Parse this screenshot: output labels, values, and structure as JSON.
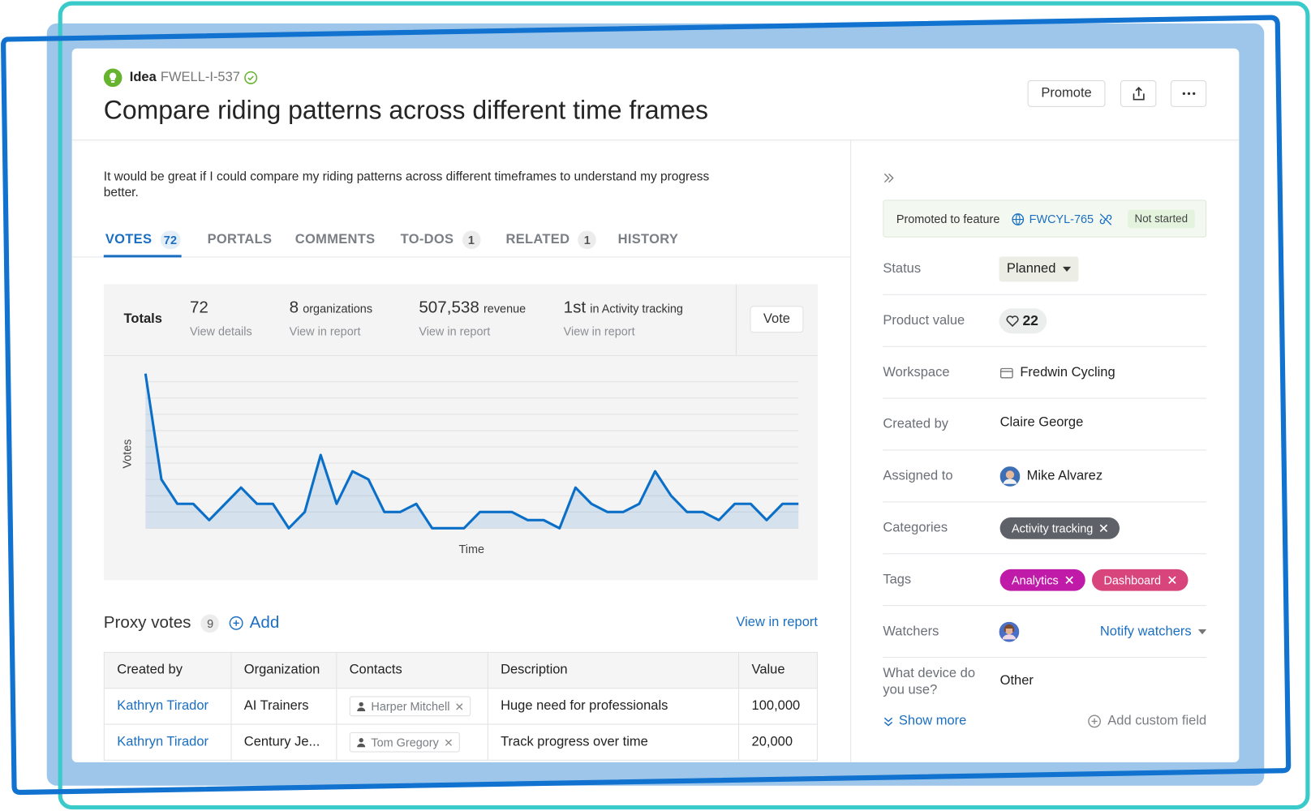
{
  "header": {
    "type_label": "Idea",
    "ref": "FWELL-I-537",
    "title": "Compare riding patterns across different time frames",
    "promote": "Promote"
  },
  "description": "It would be great if I could compare my riding patterns across different timeframes to understand my progress better.",
  "tabs": [
    {
      "label": "VOTES",
      "count": 72
    },
    {
      "label": "PORTALS"
    },
    {
      "label": "COMMENTS"
    },
    {
      "label": "TO-DOS",
      "count": 1
    },
    {
      "label": "RELATED",
      "count": 1
    },
    {
      "label": "HISTORY"
    }
  ],
  "totals": {
    "label": "Totals",
    "items": [
      {
        "value": "72",
        "link": "View details"
      },
      {
        "value": "8",
        "unit": "organizations",
        "link": "View in report"
      },
      {
        "value": "507,538",
        "unit": "revenue",
        "link": "View in report"
      },
      {
        "value": "1st",
        "unit": "in Activity tracking",
        "link": "View in report"
      }
    ],
    "vote": "Vote"
  },
  "chart_data": {
    "type": "line",
    "x_label": "Time",
    "y_label": "Votes",
    "color": "#0b6fc7",
    "grid": true,
    "categories": [
      null,
      null,
      null,
      null,
      null,
      null,
      null,
      null,
      null,
      null,
      null,
      null,
      null,
      null,
      null,
      null,
      null,
      null,
      null,
      null,
      null,
      null,
      null,
      null,
      null,
      null,
      null,
      null,
      null,
      null,
      null,
      null,
      null,
      null,
      null,
      null,
      null,
      null,
      null,
      null,
      null,
      null
    ],
    "values": [
      19,
      6,
      3,
      3,
      1,
      3,
      5,
      3,
      3,
      0,
      2,
      9,
      3,
      7,
      6,
      2,
      2,
      3,
      0,
      0,
      0,
      2,
      2,
      2,
      1,
      1,
      0,
      5,
      3,
      2,
      2,
      3,
      7,
      4,
      2,
      2,
      1,
      3,
      3,
      1,
      3,
      3
    ],
    "ylim": [
      0,
      19
    ],
    "yticks": [
      0,
      2,
      4,
      6,
      8,
      10,
      12,
      14,
      16,
      18
    ]
  },
  "proxy_votes": {
    "title": "Proxy votes",
    "count": 9,
    "add": "Add",
    "link": "View in report",
    "columns": [
      "Created by",
      "Organization",
      "Contacts",
      "Description",
      "Value"
    ],
    "rows": [
      [
        "Kathryn Tirador",
        "AI Trainers",
        "Harper Mitchell",
        "Huge need for professionals",
        "100,000"
      ],
      [
        "Kathryn Tirador",
        "Century Je...",
        "Tom Gregory",
        "Track progress over time",
        "20,000"
      ]
    ]
  },
  "sidebar": {
    "promoted": {
      "label": "Promoted to feature",
      "ref": "FWCYL-765",
      "status": "Not started"
    },
    "fields": [
      {
        "label": "Status",
        "value": "Planned"
      },
      {
        "label": "Product value",
        "value": 22
      },
      {
        "label": "Workspace",
        "value": "Fredwin Cycling"
      },
      {
        "label": "Created by",
        "value": "Claire George"
      },
      {
        "label": "Assigned to",
        "value": "Mike Alvarez"
      },
      {
        "label": "Categories",
        "value": [
          "Activity tracking"
        ]
      },
      {
        "label": "Tags",
        "value": [
          "Analytics",
          "Dashboard"
        ]
      },
      {
        "label": "Watchers",
        "action": "Notify watchers"
      },
      {
        "label": "What device do you use?",
        "value": "Other"
      }
    ],
    "show_more": "Show more",
    "add_field": "Add custom field"
  }
}
